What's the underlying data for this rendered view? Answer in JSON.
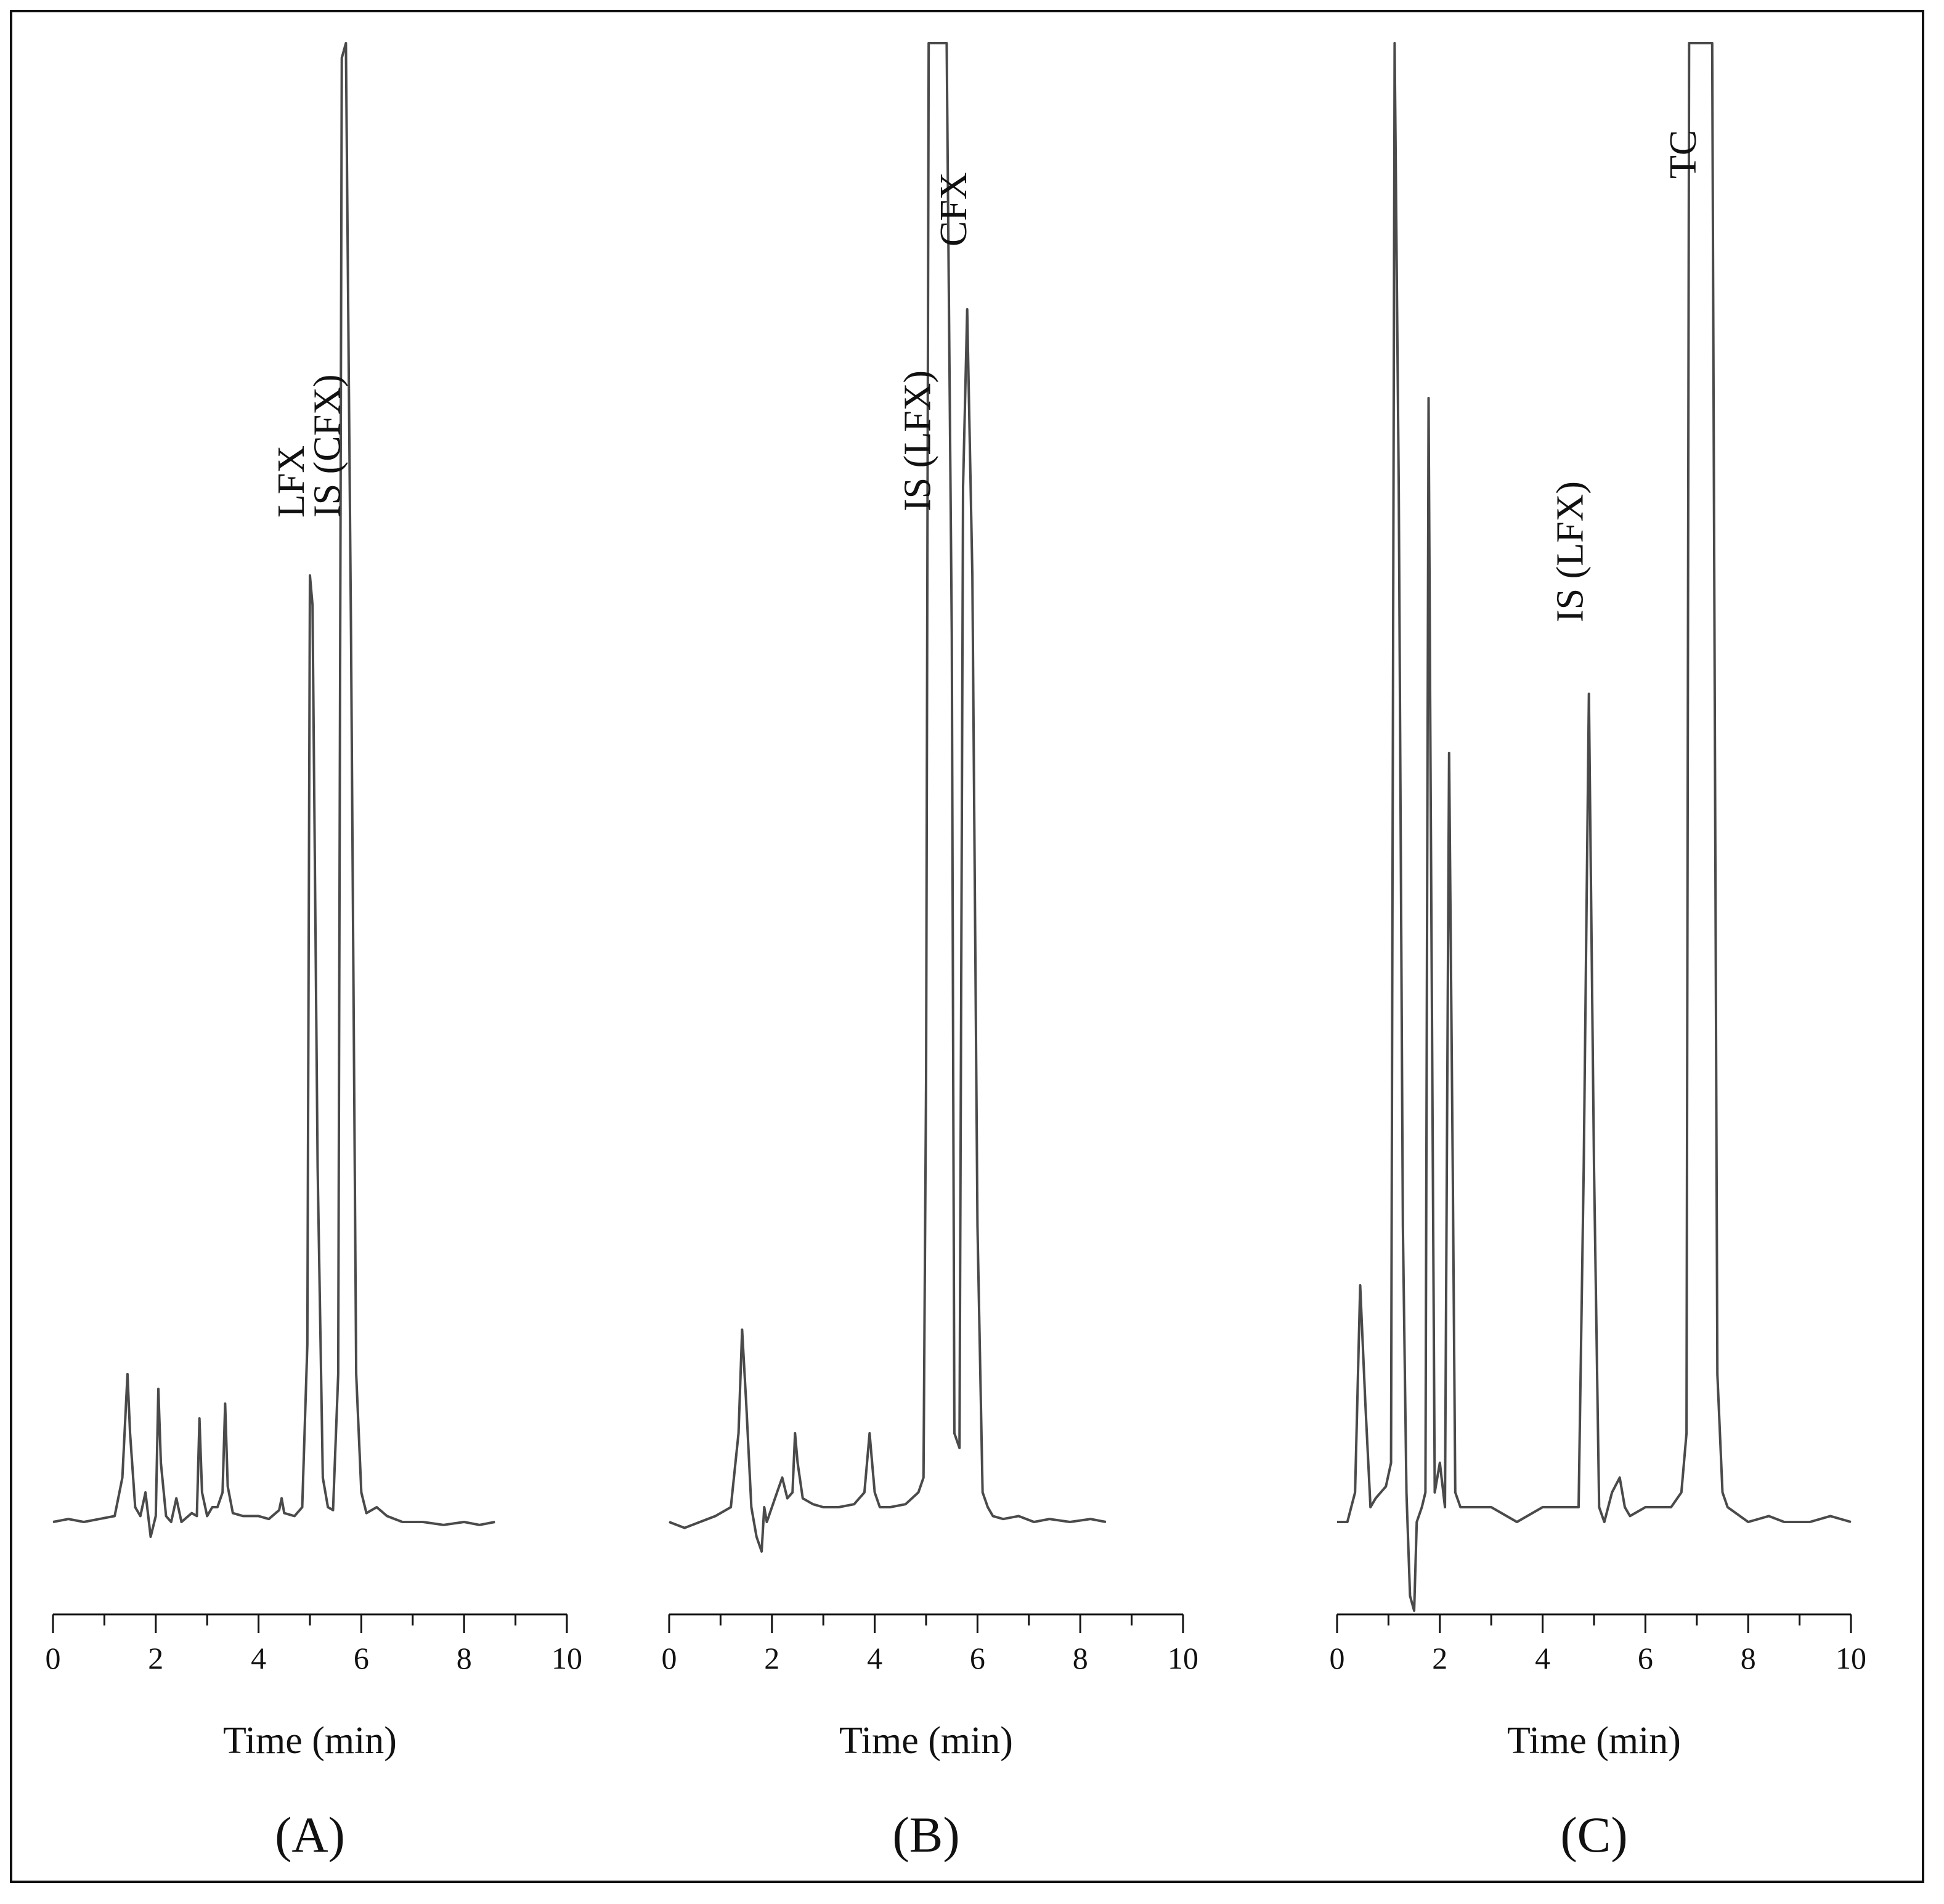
{
  "figure": {
    "border_color": "#111111",
    "trace_color": "#4a4a4a"
  },
  "chart_data": [
    {
      "type": "line",
      "panel_label": "(A)",
      "xlabel": "Time (min)",
      "ylabel": "",
      "xlim": [
        0,
        10
      ],
      "xticks": [
        "0",
        "2",
        "4",
        "6",
        "8",
        "10"
      ],
      "grid": false,
      "legend": "none",
      "annotations": [
        {
          "text": "LFX",
          "x": 5.0
        },
        {
          "text": "IS (CFX)",
          "x": 5.7
        }
      ],
      "series": [
        {
          "x": [
            0.0,
            0.3,
            0.6,
            0.9,
            1.2,
            1.35,
            1.45,
            1.5,
            1.6,
            1.7,
            1.8,
            1.9,
            2.0,
            2.05,
            2.1,
            2.2,
            2.3,
            2.4,
            2.5,
            2.7,
            2.8,
            2.85,
            2.9,
            3.0,
            3.1,
            3.2,
            3.3,
            3.35,
            3.4,
            3.5,
            3.7,
            4.0,
            4.2,
            4.4,
            4.45,
            4.5,
            4.7,
            4.85,
            4.95,
            5.0,
            5.05,
            5.15,
            5.25,
            5.35,
            5.45,
            5.55,
            5.62,
            5.7,
            5.8,
            5.9,
            6.0,
            6.1,
            6.3,
            6.5,
            6.8,
            7.2,
            7.6,
            8.0,
            8.3,
            8.6
          ],
          "y": [
            0.0,
            0.01,
            0.0,
            0.01,
            0.02,
            0.15,
            0.5,
            0.3,
            0.05,
            0.02,
            0.1,
            -0.05,
            0.02,
            0.45,
            0.2,
            0.02,
            0.0,
            0.08,
            0.0,
            0.03,
            0.02,
            0.35,
            0.1,
            0.02,
            0.05,
            0.05,
            0.1,
            0.4,
            0.12,
            0.03,
            0.02,
            0.02,
            0.01,
            0.04,
            0.08,
            0.03,
            0.02,
            0.05,
            0.6,
            3.2,
            3.1,
            1.2,
            0.15,
            0.05,
            0.04,
            0.5,
            4.95,
            5.0,
            3.0,
            0.5,
            0.1,
            0.03,
            0.05,
            0.02,
            0.0,
            0.0,
            -0.01,
            0.0,
            -0.01,
            0.0
          ]
        }
      ]
    },
    {
      "type": "line",
      "panel_label": "(B)",
      "xlabel": "Time (min)",
      "ylabel": "",
      "xlim": [
        0,
        10
      ],
      "xticks": [
        "0",
        "2",
        "4",
        "6",
        "8",
        "10"
      ],
      "grid": false,
      "legend": "none",
      "annotations": [
        {
          "text": "IS (LFX)",
          "x": 5.2
        },
        {
          "text": "CFX",
          "x": 5.9
        }
      ],
      "series": [
        {
          "x": [
            0.0,
            0.3,
            0.6,
            0.9,
            1.2,
            1.35,
            1.42,
            1.5,
            1.6,
            1.7,
            1.8,
            1.85,
            1.9,
            2.0,
            2.1,
            2.2,
            2.3,
            2.4,
            2.45,
            2.5,
            2.6,
            2.8,
            3.0,
            3.3,
            3.6,
            3.8,
            3.9,
            3.95,
            4.0,
            4.1,
            4.3,
            4.6,
            4.85,
            4.95,
            5.0,
            5.05,
            5.2,
            5.4,
            5.5,
            5.55,
            5.65,
            5.72,
            5.8,
            5.9,
            6.0,
            6.1,
            6.2,
            6.3,
            6.5,
            6.8,
            7.1,
            7.4,
            7.8,
            8.2,
            8.5
          ],
          "y": [
            0.0,
            -0.02,
            0.0,
            0.02,
            0.05,
            0.3,
            0.65,
            0.4,
            0.05,
            -0.05,
            -0.1,
            0.05,
            0.0,
            0.05,
            0.1,
            0.15,
            0.08,
            0.1,
            0.3,
            0.2,
            0.08,
            0.06,
            0.05,
            0.05,
            0.06,
            0.1,
            0.3,
            0.2,
            0.1,
            0.05,
            0.05,
            0.06,
            0.1,
            0.15,
            1.5,
            5.0,
            5.0,
            5.0,
            3.0,
            0.3,
            0.25,
            3.5,
            4.1,
            3.2,
            1.0,
            0.1,
            0.05,
            0.02,
            0.01,
            0.02,
            0.0,
            0.01,
            0.0,
            0.01,
            0.0
          ]
        }
      ]
    },
    {
      "type": "line",
      "panel_label": "(C)",
      "xlabel": "Time (min)",
      "ylabel": "",
      "xlim": [
        0,
        10
      ],
      "xticks": [
        "0",
        "2",
        "4",
        "6",
        "8",
        "10"
      ],
      "grid": false,
      "legend": "none",
      "annotations": [
        {
          "text": "IS (LFX)",
          "x": 4.9
        },
        {
          "text": "TC",
          "x": 7.1
        }
      ],
      "series": [
        {
          "x": [
            0.0,
            0.2,
            0.35,
            0.45,
            0.55,
            0.65,
            0.75,
            0.85,
            0.95,
            1.05,
            1.12,
            1.2,
            1.28,
            1.35,
            1.42,
            1.5,
            1.55,
            1.65,
            1.72,
            1.78,
            1.82,
            1.9,
            2.0,
            2.1,
            2.18,
            2.25,
            2.3,
            2.4,
            2.6,
            3.0,
            3.5,
            4.0,
            4.5,
            4.7,
            4.8,
            4.9,
            5.0,
            5.1,
            5.2,
            5.35,
            5.5,
            5.6,
            5.7,
            6.0,
            6.5,
            6.7,
            6.8,
            6.85,
            7.0,
            7.3,
            7.4,
            7.5,
            7.6,
            8.0,
            8.4,
            8.7,
            9.2,
            9.6,
            10.0
          ],
          "y": [
            0.0,
            0.0,
            0.1,
            0.8,
            0.4,
            0.05,
            0.08,
            0.1,
            0.12,
            0.2,
            5.0,
            3.5,
            1.0,
            0.1,
            -0.25,
            -0.3,
            0.0,
            0.05,
            0.1,
            3.8,
            2.5,
            0.1,
            0.2,
            0.05,
            2.6,
            1.2,
            0.1,
            0.05,
            0.05,
            0.05,
            0.0,
            0.05,
            0.05,
            0.05,
            1.2,
            2.8,
            1.2,
            0.05,
            0.0,
            0.1,
            0.15,
            0.05,
            0.02,
            0.05,
            0.05,
            0.1,
            0.3,
            5.0,
            5.0,
            5.0,
            0.5,
            0.1,
            0.05,
            0.0,
            0.02,
            0.0,
            0.0,
            0.02,
            0.0
          ]
        }
      ]
    }
  ]
}
